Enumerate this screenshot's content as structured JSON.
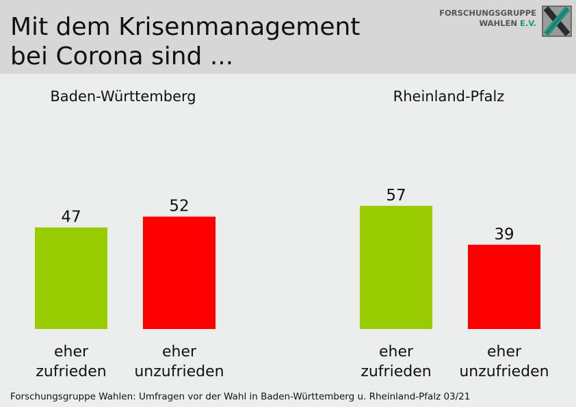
{
  "title_line1": "Mit dem Krisenmanagement",
  "title_line2": "bei Corona sind ...",
  "logo": {
    "line1": "FORSCHUNGSGRUPPE",
    "line2": "WAHLEN",
    "line2_suffix": "E.V.",
    "icon": "x-logo-icon"
  },
  "colors": {
    "satisfied": "#99cc00",
    "dissatisfied": "#ff0000",
    "header_bg": "#d7d7d7",
    "page_bg": "#eceeed"
  },
  "chart_data": [
    {
      "type": "bar",
      "title": "Baden-Württemberg",
      "categories": [
        [
          "eher",
          "zufrieden"
        ],
        [
          "eher",
          "unzufrieden"
        ]
      ],
      "values": [
        47,
        52
      ],
      "colors": [
        "#99cc00",
        "#ff0000"
      ],
      "ylim": [
        0,
        100
      ],
      "grid": false
    },
    {
      "type": "bar",
      "title": "Rheinland-Pfalz",
      "categories": [
        [
          "eher",
          "zufrieden"
        ],
        [
          "eher",
          "unzufrieden"
        ]
      ],
      "values": [
        57,
        39
      ],
      "colors": [
        "#99cc00",
        "#ff0000"
      ],
      "ylim": [
        0,
        100
      ],
      "grid": false
    }
  ],
  "footer": "Forschungsgruppe Wahlen: Umfragen vor der Wahl in Baden-Württemberg u. Rheinland-Pfalz 03/21"
}
